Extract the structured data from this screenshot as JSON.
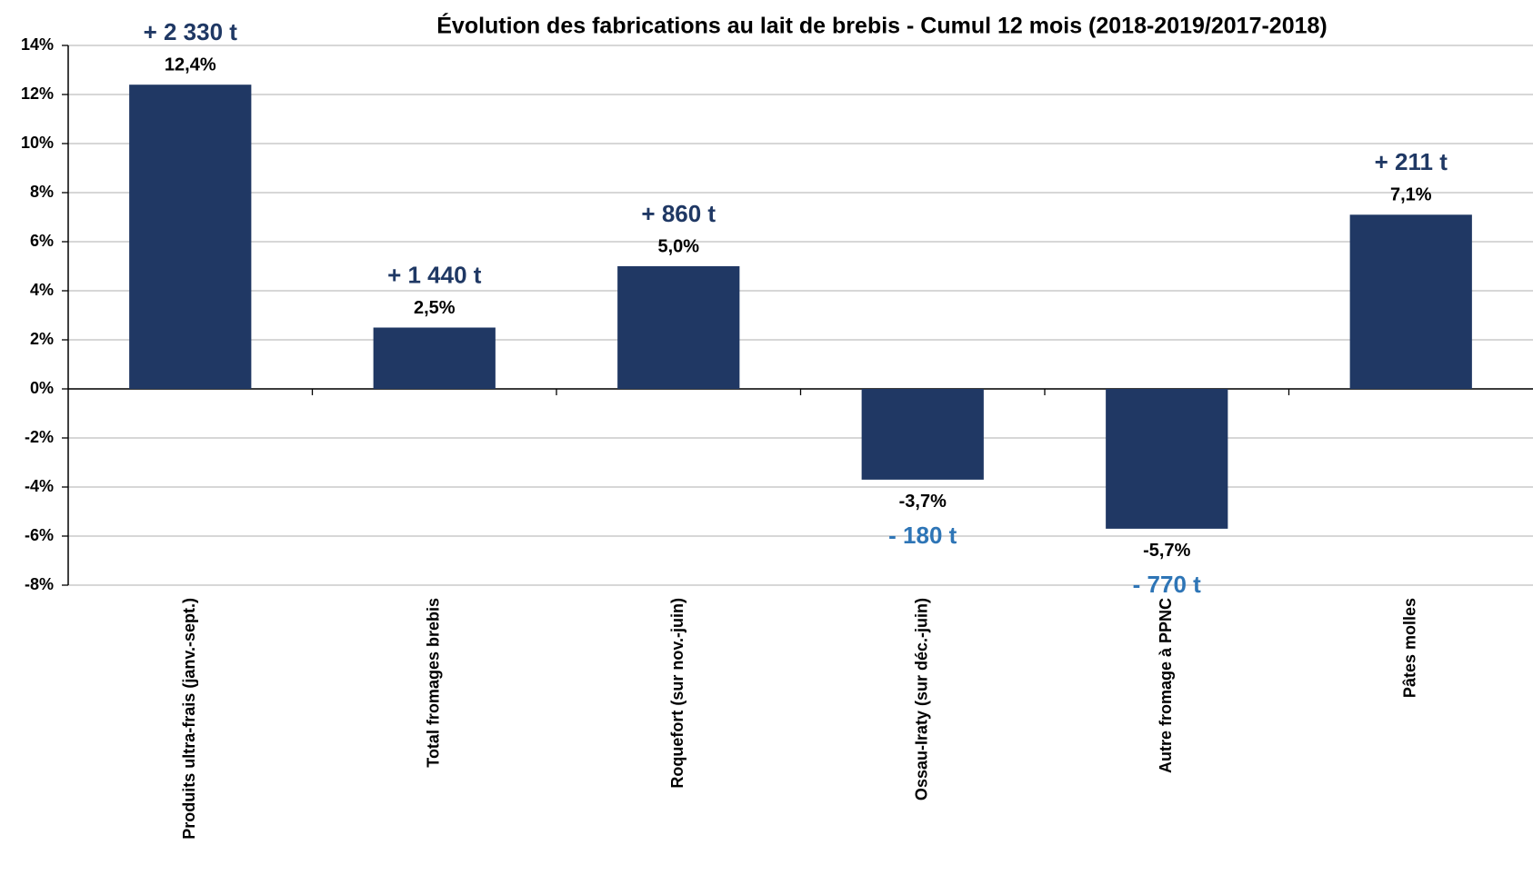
{
  "chart_data": {
    "type": "bar",
    "title": "Évolution des fabrications au lait de brebis - Cumul 12 mois (2018-2019/2017-2018)",
    "categories": [
      "Produits ultra-frais (janv.-sept.)",
      "Total fromages brebis",
      "Roquefort (sur nov.-juin)",
      "Ossau-Iraty (sur déc.-juin)",
      "Autre fromage à PPNC",
      "Pâtes molles"
    ],
    "values": [
      12.4,
      2.5,
      5.0,
      -3.7,
      -5.7,
      7.1
    ],
    "value_labels": [
      "12,4%",
      "2,5%",
      "5,0%",
      "-3,7%",
      "-5,7%",
      "7,1%"
    ],
    "annotations": [
      {
        "text": "+ 2 330 t",
        "color": "#1f3864"
      },
      {
        "text": "+ 1 440 t",
        "color": "#1f3864"
      },
      {
        "text": "+ 860 t",
        "color": "#1f3864"
      },
      {
        "text": "- 180 t",
        "color": "#2e75b6"
      },
      {
        "text": "- 770 t",
        "color": "#2e75b6"
      },
      {
        "text": "+ 211 t",
        "color": "#1f3864"
      }
    ],
    "color": "#203864",
    "ylim": [
      -8,
      14
    ],
    "yticks": [
      {
        "value": -8,
        "label": "-8%"
      },
      {
        "value": -6,
        "label": "-6%"
      },
      {
        "value": -4,
        "label": "-4%"
      },
      {
        "value": -2,
        "label": "-2%"
      },
      {
        "value": 0,
        "label": "0%"
      },
      {
        "value": 2,
        "label": "2%"
      },
      {
        "value": 4,
        "label": "4%"
      },
      {
        "value": 6,
        "label": "6%"
      },
      {
        "value": 8,
        "label": "8%"
      },
      {
        "value": 10,
        "label": "10%"
      },
      {
        "value": 12,
        "label": "12%"
      },
      {
        "value": 14,
        "label": "14%"
      }
    ],
    "grid": true
  }
}
